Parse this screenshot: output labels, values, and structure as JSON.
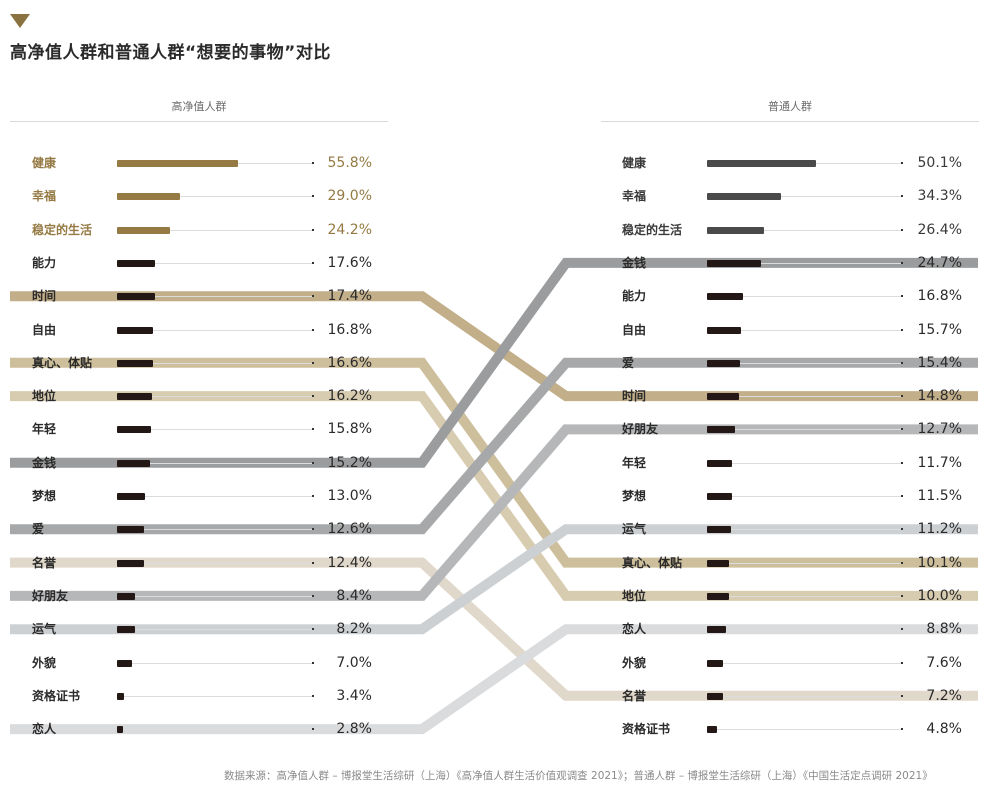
{
  "header": {
    "title": "高净值人群和普通人群“想要的事物”对比",
    "marker_color": "#8a7140"
  },
  "colors": {
    "highlight_gold": "#957a44",
    "bar_dark": "#231816",
    "bar_gray": "#4a4a4a",
    "connector_gold": "#c2ae88",
    "connector_gold_light": "#d4c7a8",
    "connector_beige": "#dcd2c2",
    "connector_gray_dark": "#9a9c9e",
    "connector_gray_mid": "#b3b5b7",
    "connector_gray_light": "#d2d4d6"
  },
  "left_group": {
    "heading": "高净值人群"
  },
  "right_group": {
    "heading": "普通人群"
  },
  "source": "数据来源：高净值人群 – 博报堂生活综研（上海）《高净值人群生活价值观调查 2021》；普通人群 – 博报堂生活综研（上海）《中国生活定点调研 2021》",
  "chart_data": {
    "type": "bar",
    "title": "高净值人群和普通人群“想要的事物”对比",
    "layout": "slope-ranking (two ranked horizontal bar lists with connecting lines)",
    "series": [
      {
        "name": "高净值人群",
        "categories": [
          "健康",
          "幸福",
          "稳定的生活",
          "能力",
          "时间",
          "自由",
          "真心、体贴",
          "地位",
          "年轻",
          "金钱",
          "梦想",
          "爱",
          "名誉",
          "好朋友",
          "运气",
          "外貌",
          "资格证书",
          "恋人"
        ],
        "values": [
          55.8,
          29.0,
          24.2,
          17.6,
          17.4,
          16.8,
          16.6,
          16.2,
          15.8,
          15.2,
          13.0,
          12.6,
          12.4,
          8.4,
          8.2,
          7.0,
          3.4,
          2.8
        ],
        "labels": [
          "55.8%",
          "29.0%",
          "24.2%",
          "17.6%",
          "17.4%",
          "16.8%",
          "16.6%",
          "16.2%",
          "15.8%",
          "15.2%",
          "13.0%",
          "12.6%",
          "12.4%",
          "8.4%",
          "8.2%",
          "7.0%",
          "3.4%",
          "2.8%"
        ]
      },
      {
        "name": "普通人群",
        "categories": [
          "健康",
          "幸福",
          "稳定的生活",
          "金钱",
          "能力",
          "自由",
          "爱",
          "时间",
          "好朋友",
          "年轻",
          "梦想",
          "运气",
          "真心、体贴",
          "地位",
          "恋人",
          "外貌",
          "名誉",
          "资格证书"
        ],
        "values": [
          50.1,
          34.3,
          26.4,
          24.7,
          16.8,
          15.7,
          15.4,
          14.8,
          12.7,
          11.7,
          11.5,
          11.2,
          10.1,
          10.0,
          8.8,
          7.6,
          7.2,
          4.8
        ],
        "labels": [
          "50.1%",
          "34.3%",
          "26.4%",
          "24.7%",
          "16.8%",
          "15.7%",
          "15.4%",
          "14.8%",
          "12.7%",
          "11.7%",
          "11.5%",
          "11.2%",
          "10.1%",
          "10.0%",
          "8.8%",
          "7.6%",
          "7.2%",
          "4.8%"
        ]
      }
    ],
    "connections": [
      {
        "item": "时间",
        "left_rank": 5,
        "right_rank": 8,
        "color": "#c2ae88"
      },
      {
        "item": "真心、体贴",
        "left_rank": 7,
        "right_rank": 13,
        "color": "#cdbf9c"
      },
      {
        "item": "地位",
        "left_rank": 8,
        "right_rank": 14,
        "color": "#d8ccb0"
      },
      {
        "item": "金钱",
        "left_rank": 10,
        "right_rank": 4,
        "color": "#9a9c9e"
      },
      {
        "item": "爱",
        "left_rank": 12,
        "right_rank": 7,
        "color": "#a6a8aa"
      },
      {
        "item": "名誉",
        "left_rank": 13,
        "right_rank": 17,
        "color": "#e0d8ca"
      },
      {
        "item": "好朋友",
        "left_rank": 14,
        "right_rank": 9,
        "color": "#b5b7b9"
      },
      {
        "item": "运气",
        "left_rank": 15,
        "right_rank": 12,
        "color": "#cdd0d2"
      },
      {
        "item": "恋人",
        "left_rank": 18,
        "right_rank": 15,
        "color": "#d9dbdd"
      }
    ],
    "xlabel": "",
    "ylabel": "",
    "xlim": [
      0,
      60
    ],
    "grid": false,
    "legend": "group headings above each column: 高净值人群 (left), 普通人群 (right)",
    "top3_highlight": "top three items in each group are colored (gold on left, dark gray on right); remaining bars are near-black"
  }
}
